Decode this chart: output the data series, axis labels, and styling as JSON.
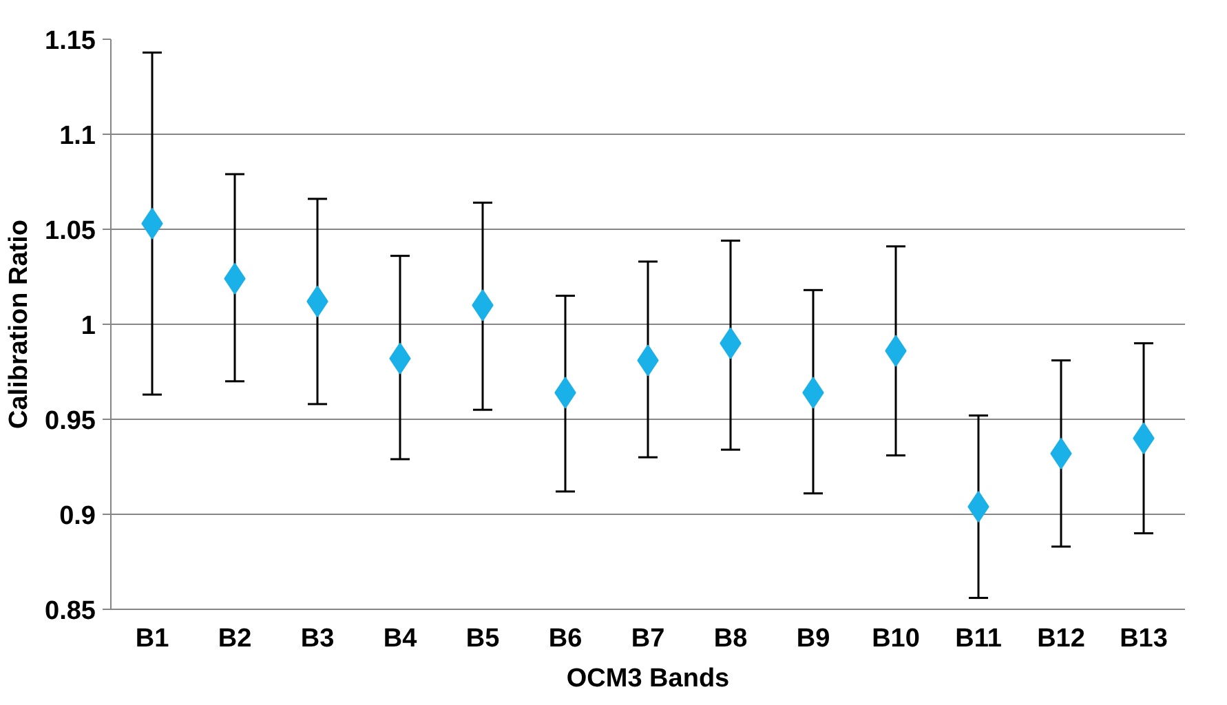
{
  "chart_data": {
    "type": "scatter",
    "xlabel": "OCM3 Bands",
    "ylabel": "Calibration Ratio",
    "categories": [
      "B1",
      "B2",
      "B3",
      "B4",
      "B5",
      "B6",
      "B7",
      "B8",
      "B9",
      "B10",
      "B11",
      "B12",
      "B13"
    ],
    "series": [
      {
        "color": "#1ab0e8",
        "values": [
          1.053,
          1.024,
          1.012,
          0.982,
          1.01,
          0.964,
          0.981,
          0.99,
          0.964,
          0.986,
          0.904,
          0.932,
          0.94
        ],
        "errors": [
          [
            0.963,
            1.143
          ],
          [
            0.97,
            1.079
          ],
          [
            0.958,
            1.066
          ],
          [
            0.929,
            1.036
          ],
          [
            0.955,
            1.064
          ],
          [
            0.912,
            1.015
          ],
          [
            0.93,
            1.033
          ],
          [
            0.934,
            1.044
          ],
          [
            0.911,
            1.018
          ],
          [
            0.931,
            1.041
          ],
          [
            0.856,
            0.952
          ],
          [
            0.883,
            0.981
          ],
          [
            0.89,
            0.99
          ]
        ]
      }
    ],
    "ylim": [
      0.85,
      1.15
    ],
    "yticks": [
      0.85,
      0.9,
      0.95,
      1,
      1.05,
      1.1,
      1.15
    ],
    "grid": "y",
    "marker": "diamond"
  }
}
